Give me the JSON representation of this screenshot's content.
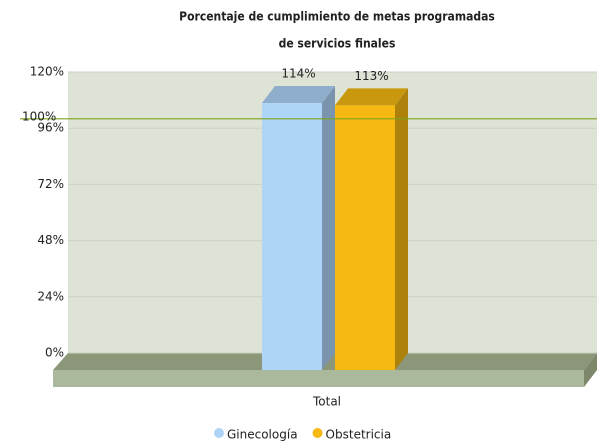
{
  "chart_data": {
    "type": "bar3d",
    "title": [
      "Porcentaje de cumplimiento de metas programadas",
      "de servicios finales"
    ],
    "categories": [
      "Total"
    ],
    "series": [
      {
        "name": "Ginecología",
        "color": "#aed4f7",
        "values": [
          114
        ],
        "value_labels": [
          "114%"
        ]
      },
      {
        "name": "Obstetricia",
        "color": "#f5b912",
        "values": [
          113
        ],
        "value_labels": [
          "113%"
        ]
      }
    ],
    "ylim": [
      0,
      120
    ],
    "yticks": [
      {
        "value": 0,
        "label": "0%"
      },
      {
        "value": 24,
        "label": "24%"
      },
      {
        "value": 48,
        "label": "48%"
      },
      {
        "value": 72,
        "label": "72%"
      },
      {
        "value": 96,
        "label": "96%"
      },
      {
        "value": 120,
        "label": "120%"
      }
    ],
    "reference_line": {
      "value": 100,
      "label": "100%",
      "color": "#7ea31c"
    },
    "grid": true,
    "legend": "bottom"
  }
}
